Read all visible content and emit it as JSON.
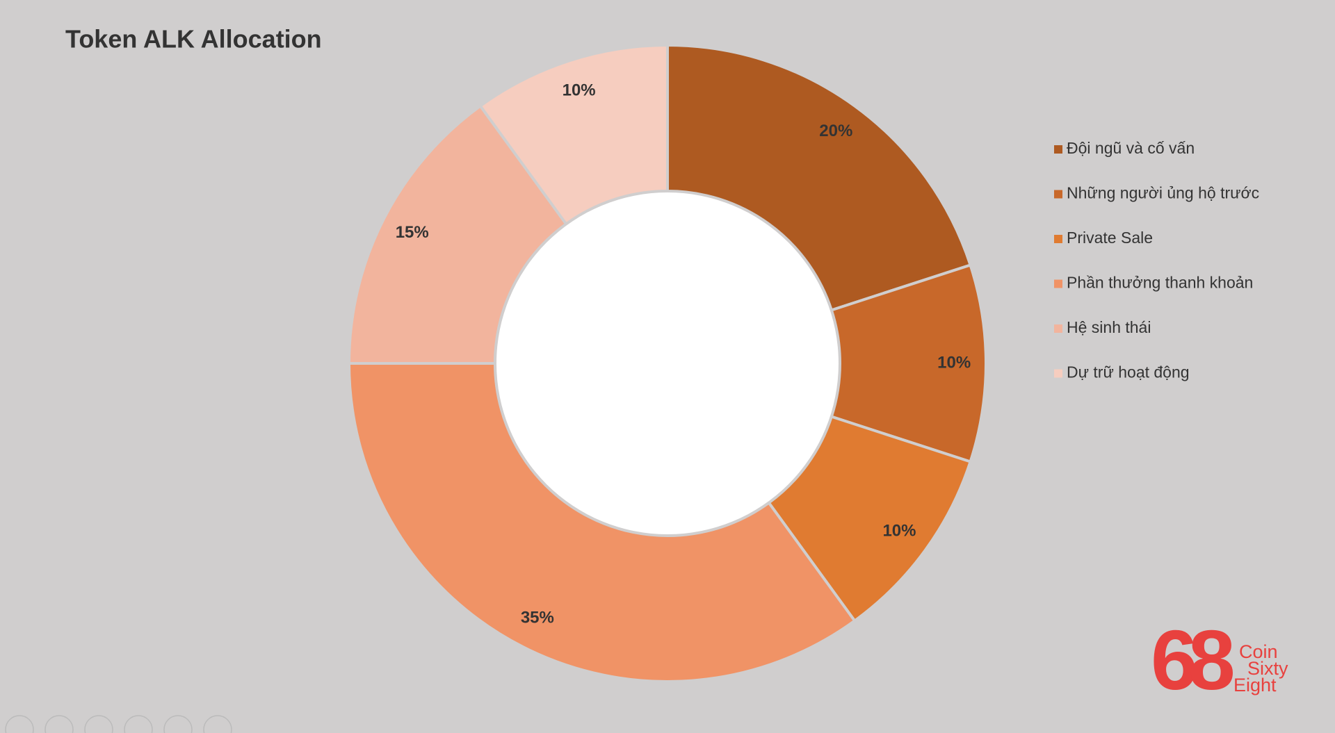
{
  "chart_data": {
    "type": "donut",
    "title": "Token ALK Allocation",
    "categories": [
      "Đội ngũ và cố vấn",
      "Những người ủng hộ trước",
      "Private Sale",
      "Phần thưởng thanh khoản",
      "Hệ sinh thái",
      "Dự trữ hoạt động"
    ],
    "values": [
      20,
      10,
      10,
      35,
      15,
      10
    ],
    "value_labels": [
      "20%",
      "10%",
      "10%",
      "35%",
      "15%",
      "10%"
    ],
    "colors": [
      "#ae5a21",
      "#c8682a",
      "#e07b31",
      "#f09366",
      "#f2b49d",
      "#f6cdbf"
    ],
    "legend": "right"
  },
  "logo": {
    "mark": "68",
    "lines": [
      "Coin",
      "Sixty",
      "Eight"
    ]
  }
}
